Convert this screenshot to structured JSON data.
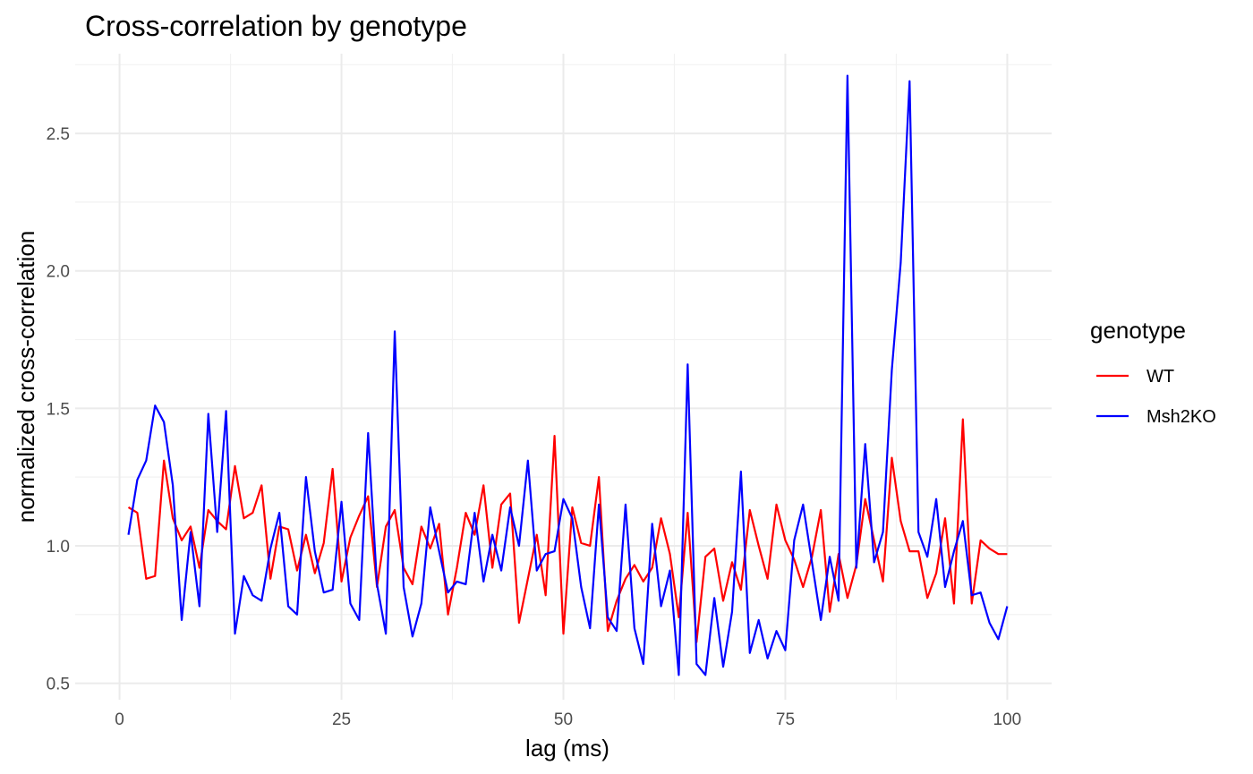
{
  "chart_data": {
    "type": "line",
    "title": "Cross-correlation by genotype",
    "xlabel": "lag (ms)",
    "ylabel": "normalized cross-correlation",
    "xlim": [
      -5,
      105
    ],
    "ylim": [
      0.44,
      2.79
    ],
    "x_ticks": [
      0,
      25,
      50,
      75,
      100
    ],
    "y_ticks": [
      0.5,
      1.0,
      1.5,
      2.0,
      2.5
    ],
    "x_tick_labels": [
      "0",
      "25",
      "50",
      "75",
      "100"
    ],
    "y_tick_labels": [
      "0.5",
      "1.0",
      "1.5",
      "2.0",
      "2.5"
    ],
    "grid": true,
    "legend": {
      "title": "genotype",
      "placement": "right"
    },
    "x": [
      1,
      2,
      3,
      4,
      5,
      6,
      7,
      8,
      9,
      10,
      11,
      12,
      13,
      14,
      15,
      16,
      17,
      18,
      19,
      20,
      21,
      22,
      23,
      24,
      25,
      26,
      27,
      28,
      29,
      30,
      31,
      32,
      33,
      34,
      35,
      36,
      37,
      38,
      39,
      40,
      41,
      42,
      43,
      44,
      45,
      46,
      47,
      48,
      49,
      50,
      51,
      52,
      53,
      54,
      55,
      56,
      57,
      58,
      59,
      60,
      61,
      62,
      63,
      64,
      65,
      66,
      67,
      68,
      69,
      70,
      71,
      72,
      73,
      74,
      75,
      76,
      77,
      78,
      79,
      80,
      81,
      82,
      83,
      84,
      85,
      86,
      87,
      88,
      89,
      90,
      91,
      92,
      93,
      94,
      95,
      96,
      97,
      98,
      99,
      100
    ],
    "series": [
      {
        "name": "WT",
        "color": "#ff0000",
        "values": [
          1.14,
          1.12,
          0.88,
          0.89,
          1.31,
          1.1,
          1.02,
          1.07,
          0.92,
          1.13,
          1.09,
          1.06,
          1.29,
          1.1,
          1.12,
          1.22,
          0.88,
          1.07,
          1.06,
          0.91,
          1.04,
          0.9,
          1.01,
          1.28,
          0.87,
          1.03,
          1.11,
          1.18,
          0.85,
          1.07,
          1.13,
          0.92,
          0.86,
          1.07,
          0.99,
          1.08,
          0.75,
          0.92,
          1.12,
          1.04,
          1.22,
          0.92,
          1.15,
          1.19,
          0.72,
          0.88,
          1.04,
          0.82,
          1.4,
          0.68,
          1.14,
          1.01,
          1.0,
          1.25,
          0.69,
          0.8,
          0.88,
          0.93,
          0.87,
          0.92,
          1.1,
          0.97,
          0.74,
          1.12,
          0.65,
          0.96,
          0.99,
          0.8,
          0.94,
          0.84,
          1.13,
          1.0,
          0.88,
          1.15,
          1.02,
          0.95,
          0.85,
          0.96,
          1.13,
          0.76,
          0.97,
          0.81,
          0.93,
          1.17,
          1.02,
          0.87,
          1.32,
          1.09,
          0.98,
          0.98,
          0.81,
          0.9,
          1.1,
          0.79,
          1.46,
          0.79,
          1.02,
          0.99,
          0.97,
          0.97
        ]
      },
      {
        "name": "Msh2KO",
        "color": "#0000ff",
        "values": [
          1.04,
          1.24,
          1.31,
          1.51,
          1.45,
          1.22,
          0.73,
          1.05,
          0.78,
          1.48,
          1.05,
          1.49,
          0.68,
          0.89,
          0.82,
          0.8,
          0.99,
          1.12,
          0.78,
          0.75,
          1.25,
          0.98,
          0.83,
          0.84,
          1.16,
          0.79,
          0.73,
          1.41,
          0.86,
          0.68,
          1.78,
          0.85,
          0.67,
          0.79,
          1.14,
          0.98,
          0.83,
          0.87,
          0.86,
          1.12,
          0.87,
          1.04,
          0.91,
          1.14,
          1.0,
          1.31,
          0.91,
          0.97,
          0.98,
          1.17,
          1.1,
          0.85,
          0.7,
          1.15,
          0.74,
          0.69,
          1.15,
          0.7,
          0.57,
          1.08,
          0.78,
          0.91,
          0.53,
          1.66,
          0.57,
          0.53,
          0.81,
          0.56,
          0.76,
          1.27,
          0.61,
          0.73,
          0.59,
          0.69,
          0.62,
          1.02,
          1.15,
          0.94,
          0.73,
          0.96,
          0.8,
          2.71,
          0.92,
          1.37,
          0.94,
          1.05,
          1.64,
          2.03,
          2.69,
          1.05,
          0.96,
          1.17,
          0.85,
          0.98,
          1.09,
          0.82,
          0.83,
          0.72,
          0.66,
          0.78
        ]
      }
    ]
  }
}
